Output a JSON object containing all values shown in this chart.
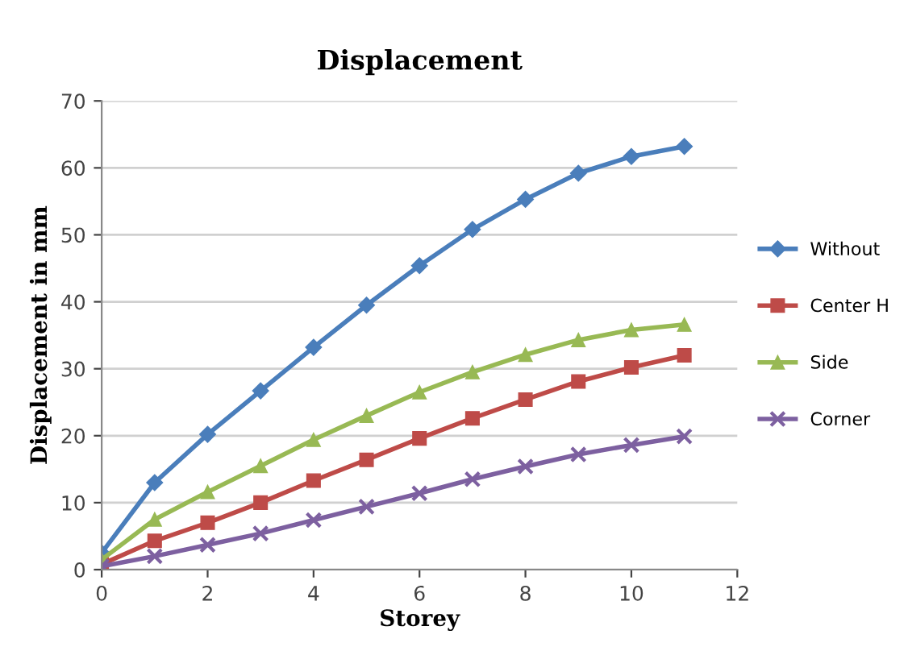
{
  "chart_data": {
    "type": "line",
    "title": "Displacement",
    "xlabel": "Storey",
    "ylabel": "Displacement in mm",
    "x": [
      0,
      1,
      2,
      3,
      4,
      5,
      6,
      7,
      8,
      9,
      10,
      11
    ],
    "series": [
      {
        "name": "Without",
        "color": "#4a7ebb",
        "marker": "diamond",
        "values": [
          2.5,
          13,
          20.2,
          26.7,
          33.2,
          39.5,
          45.4,
          50.8,
          55.3,
          59.2,
          61.7,
          63.2
        ]
      },
      {
        "name": "Center H",
        "color": "#be4b48",
        "marker": "square",
        "values": [
          0.8,
          4.3,
          7,
          10,
          13.3,
          16.4,
          19.6,
          22.6,
          25.4,
          28.1,
          30.2,
          32
        ]
      },
      {
        "name": "Side",
        "color": "#98b954",
        "marker": "triangle",
        "values": [
          1.5,
          7.5,
          11.6,
          15.5,
          19.4,
          23,
          26.5,
          29.5,
          32.1,
          34.3,
          35.8,
          36.6
        ]
      },
      {
        "name": "Corner",
        "color": "#7d60a0",
        "marker": "cross",
        "values": [
          0.5,
          2,
          3.7,
          5.4,
          7.4,
          9.4,
          11.4,
          13.5,
          15.4,
          17.2,
          18.6,
          19.9
        ]
      }
    ],
    "xlim": [
      0,
      12
    ],
    "xticks": [
      0,
      2,
      4,
      6,
      8,
      10,
      12
    ],
    "ylim": [
      0,
      70
    ],
    "yticks": [
      0,
      10,
      20,
      30,
      40,
      50,
      60,
      70
    ],
    "grid": "y",
    "legend": "right",
    "line_style": "solid"
  }
}
